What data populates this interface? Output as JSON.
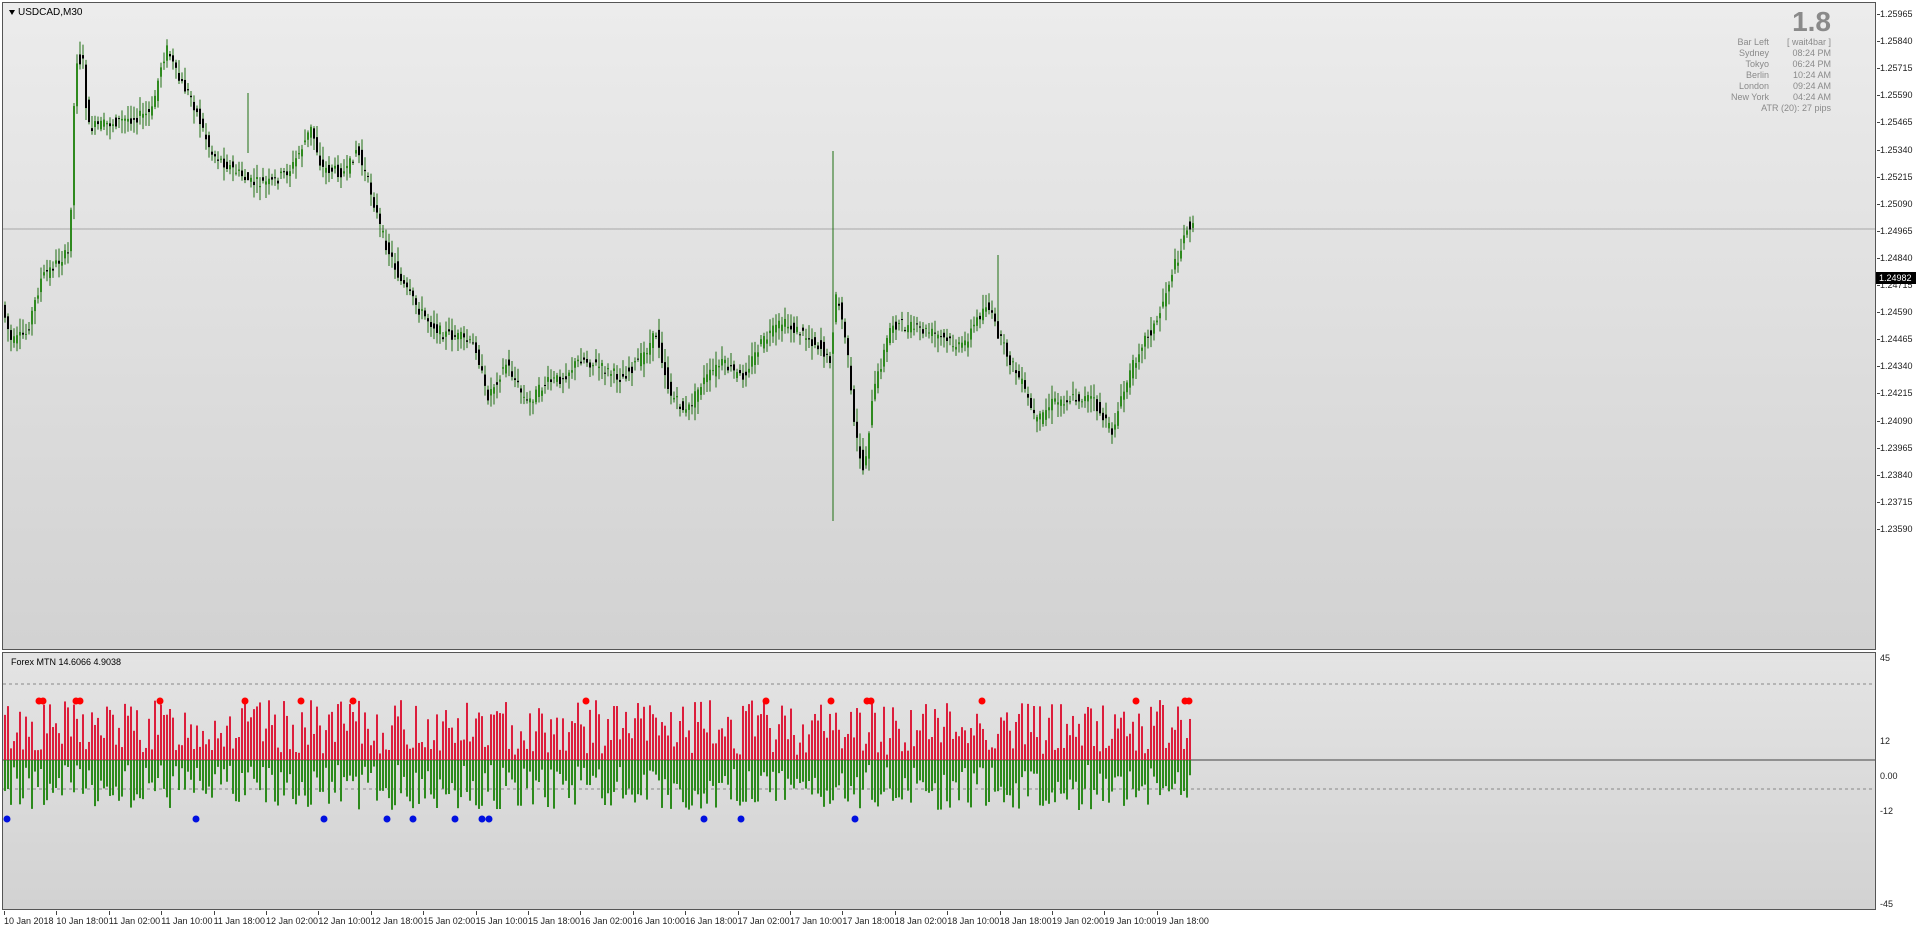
{
  "chart": {
    "symbol": "USDCAD,M30",
    "current_price": "1.24982",
    "price_axis_labels": [
      "1.25965",
      "1.25840",
      "1.25715",
      "1.25590",
      "1.25465",
      "1.25340",
      "1.25215",
      "1.25090",
      "1.24965",
      "1.24840",
      "1.24715",
      "1.24590",
      "1.24465",
      "1.24340",
      "1.24215",
      "1.24090",
      "1.23965",
      "1.23840",
      "1.23715",
      "1.23590"
    ],
    "time_axis_labels": [
      "10 Jan 2018",
      "10 Jan 18:00",
      "11 Jan 02:00",
      "11 Jan 10:00",
      "11 Jan 18:00",
      "12 Jan 02:00",
      "12 Jan 10:00",
      "12 Jan 18:00",
      "15 Jan 02:00",
      "15 Jan 10:00",
      "15 Jan 18:00",
      "16 Jan 02:00",
      "16 Jan 10:00",
      "16 Jan 18:00",
      "17 Jan 02:00",
      "17 Jan 10:00",
      "17 Jan 18:00",
      "18 Jan 02:00",
      "18 Jan 10:00",
      "18 Jan 18:00",
      "19 Jan 02:00",
      "19 Jan 10:00",
      "19 Jan 18:00"
    ],
    "colors": {
      "bull": "#2f8a1f",
      "bear": "#000000",
      "wick": "#1f6f12",
      "hist_up": "#dc1e3c",
      "hist_down": "#2c8a1c",
      "dot_red": "#ff0000",
      "dot_blue": "#0010e0"
    }
  },
  "info_box": {
    "big_value": "1.8",
    "rows": [
      {
        "label": "Bar Left",
        "value": "[ wait4bar ]"
      },
      {
        "label": "Sydney",
        "value": "08:24 PM"
      },
      {
        "label": "Tokyo",
        "value": "06:24 PM"
      },
      {
        "label": "Berlin",
        "value": "10:24 AM"
      },
      {
        "label": "London",
        "value": "09:24 AM"
      },
      {
        "label": "New York",
        "value": "04:24 AM"
      }
    ],
    "atr": "ATR (20): 27 pips"
  },
  "indicator": {
    "title": "Forex MTN  14.6066 4.9038",
    "axis_labels": [
      "45",
      "12",
      "0.00",
      "-12",
      "-45"
    ]
  }
}
